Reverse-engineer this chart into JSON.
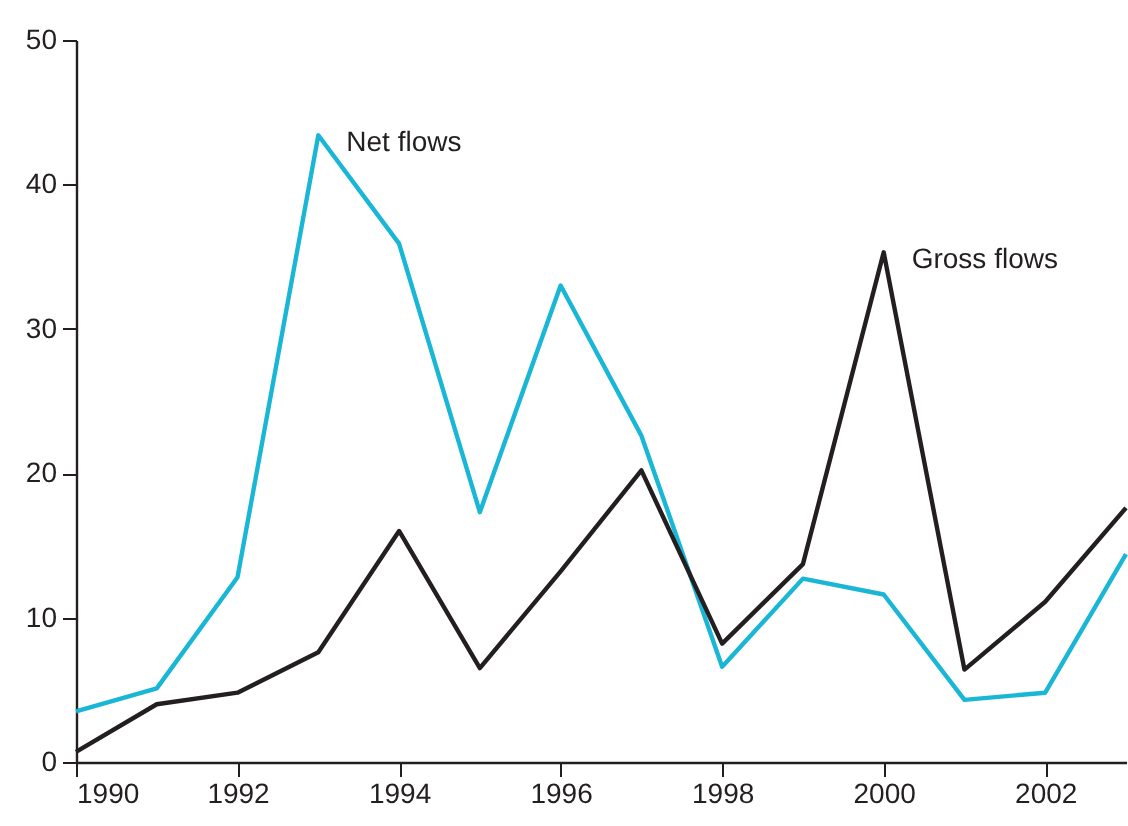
{
  "chart_data": {
    "type": "line",
    "x": [
      1990,
      1991,
      1992,
      1993,
      1994,
      1995,
      1996,
      1997,
      1998,
      1999,
      2000,
      2001,
      2002,
      2003
    ],
    "series": [
      {
        "name": "Net flows",
        "color": "#1ab6d6",
        "values": [
          3.5,
          5.1,
          12.8,
          43.4,
          35.9,
          17.3,
          33,
          22.6,
          6.6,
          12.7,
          11.6,
          4.3,
          4.8,
          14.4
        ]
      },
      {
        "name": "Gross flows",
        "color": "#231f20",
        "values": [
          0.7,
          4,
          4.8,
          7.6,
          16,
          6.5,
          13.2,
          20.2,
          8.2,
          13.7,
          35.3,
          6.4,
          11.1,
          17.6
        ]
      }
    ],
    "xlim": [
      1990,
      2003
    ],
    "xticks": [
      1990,
      1992,
      1994,
      1996,
      1998,
      2000,
      2002
    ],
    "ylim": [
      0,
      50
    ],
    "yticks": [
      0,
      10,
      20,
      30,
      40,
      50
    ],
    "grid": false,
    "legend": false,
    "marker": "none",
    "line_style": "solid"
  }
}
